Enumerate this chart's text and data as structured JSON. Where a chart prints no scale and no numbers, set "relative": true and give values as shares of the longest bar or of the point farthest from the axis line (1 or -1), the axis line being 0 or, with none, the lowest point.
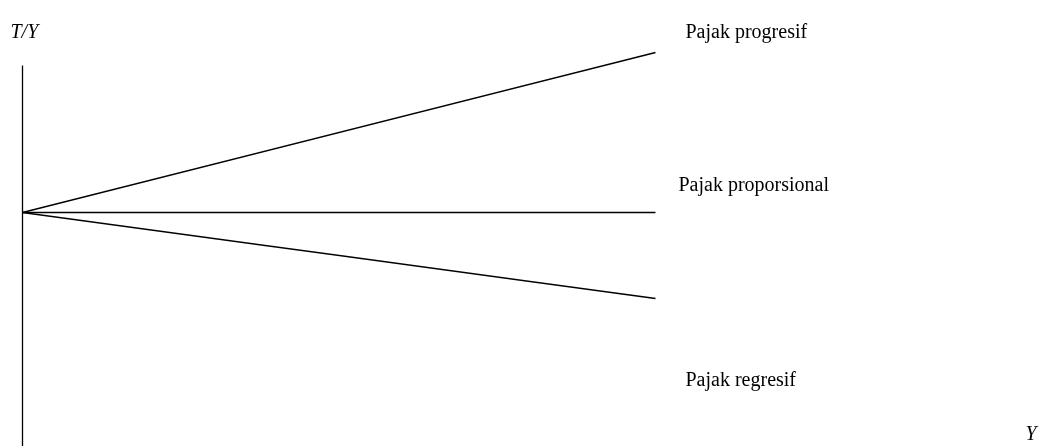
{
  "chart_data": {
    "type": "line",
    "relative": true,
    "annotations": [
      "Y"
    ],
    "ylabel": "T/Y",
    "categories": [
      null,
      null
    ],
    "grid": false,
    "line_style": "solid",
    "series": [
      {
        "name": "Pajak progresif",
        "color": "#000000",
        "values": [
          0.35,
          1
        ]
      },
      {
        "name": "Pajak proporsional",
        "color": "#000000",
        "values": [
          0.35,
          0.35
        ]
      },
      {
        "name": "Pajak regresif",
        "color": "#000000",
        "values": [
          0.35,
          0
        ]
      }
    ]
  }
}
